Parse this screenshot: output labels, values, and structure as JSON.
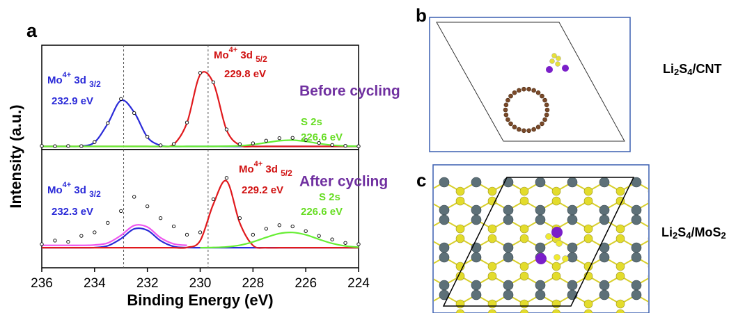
{
  "chart_data": [
    {
      "type": "line",
      "panel_label": "a",
      "ylabel": "Intensity (a.u.)",
      "title": "Before cycling",
      "title_color": "#7030a0",
      "x": [
        236,
        235.5,
        235,
        234.5,
        234,
        233.5,
        233,
        232.5,
        232,
        231.5,
        231,
        230.5,
        230,
        229.5,
        229,
        228.5,
        228,
        227.5,
        227,
        226.5,
        226,
        225.5,
        225,
        224.5,
        224
      ],
      "xlim": [
        236,
        224
      ],
      "ylim": [
        0,
        100
      ],
      "vlines": [
        232.9,
        229.7
      ],
      "points": {
        "color": "#000000",
        "values": [
          3.5,
          3.2,
          3.4,
          3.3,
          7.2,
          25.3,
          48.5,
          35.0,
          12.3,
          4.1,
          5.3,
          25.9,
          73.5,
          64.5,
          19.3,
          5.2,
          6.0,
          8.5,
          10.9,
          11.2,
          9.1,
          6.3,
          4.4,
          3.6,
          3.2
        ]
      },
      "series": [
        {
          "color": "#2a2ad8",
          "values": [
            3,
            3,
            3,
            3.3,
            7,
            24.9,
            47.1,
            35.7,
            11.9,
            3.9,
            3,
            3,
            3,
            3,
            3,
            3,
            3,
            3,
            3,
            3,
            3,
            3,
            3,
            3,
            3
          ]
        },
        {
          "color": "#e0191d",
          "values": [
            3,
            3,
            3,
            3,
            3,
            3,
            3,
            3,
            3,
            3,
            5.1,
            25.6,
            71.8,
            63.8,
            18.7,
            4.2,
            3,
            3,
            3,
            3,
            3,
            3,
            3,
            3,
            3
          ]
        },
        {
          "color": "#66ee33",
          "values": [
            3,
            3,
            3,
            3,
            3,
            3,
            3,
            3,
            3,
            3,
            3,
            3,
            3,
            3,
            3.2,
            3.6,
            4.8,
            6.6,
            8.4,
            9.0,
            7.8,
            5.8,
            4.2,
            3.4,
            3.1
          ]
        }
      ],
      "annotations": [
        {
          "parts": [
            "Mo",
            "4+",
            " 3d ",
            "3/2"
          ],
          "color": "#2a2ad8"
        },
        {
          "text": "232.9 eV",
          "color": "#2a2ad8"
        },
        {
          "parts": [
            "Mo",
            "4+",
            " 3d ",
            "5/2"
          ],
          "color": "#d01010"
        },
        {
          "text": "229.8 eV",
          "color": "#d01010"
        },
        {
          "text": "S 2s",
          "color": "#66dd22"
        },
        {
          "text": "226.6 eV",
          "color": "#66dd22"
        }
      ]
    },
    {
      "type": "line",
      "xlabel": "Binding Energy (eV)",
      "title": "After cycling",
      "title_color": "#7030a0",
      "x": [
        236,
        235.5,
        235,
        234.5,
        234,
        233.5,
        233,
        232.5,
        232,
        231.5,
        231,
        230.5,
        230,
        229.5,
        229,
        228.5,
        228,
        227.5,
        227,
        226.5,
        226,
        225.5,
        225,
        224.5,
        224
      ],
      "xlim": [
        236,
        224
      ],
      "ylim": [
        0,
        100
      ],
      "xticks": [
        236,
        234,
        232,
        230,
        228,
        226,
        224
      ],
      "vlines": [
        232.9,
        229.7
      ],
      "points": {
        "color": "#000000",
        "values": [
          20,
          23,
          22,
          27,
          30,
          38,
          48,
          60,
          52,
          42,
          35,
          28,
          30,
          58,
          76,
          42,
          28,
          33,
          36,
          35,
          31,
          27,
          24,
          21,
          20
        ]
      },
      "series": [
        {
          "color": "#ee55ee",
          "values": [
            19,
            19,
            19,
            19,
            19.3,
            21.0,
            27.4,
            35.8,
            34.5,
            25.4,
            20.2,
            19.0,
            null,
            null,
            null,
            null,
            null,
            null,
            null,
            null,
            null,
            null,
            null,
            null,
            null
          ]
        },
        {
          "color": "#2a2ad8",
          "values": [
            17,
            17,
            17,
            17,
            17.1,
            18.6,
            24.6,
            32.9,
            31.7,
            22.9,
            18.0,
            17.1,
            17,
            17,
            17,
            17,
            17,
            17,
            17,
            17,
            17,
            17,
            17,
            17,
            17
          ]
        },
        {
          "color": "#e0191d",
          "values": [
            17,
            17,
            17,
            17,
            17,
            17,
            17,
            17,
            17,
            17,
            17,
            17.2,
            22.9,
            53.9,
            73.4,
            37.9,
            18.9,
            17,
            17,
            17,
            17,
            17,
            17,
            17,
            17
          ]
        },
        {
          "color": "#66ee33",
          "values": [
            null,
            null,
            null,
            null,
            null,
            null,
            null,
            null,
            null,
            null,
            null,
            null,
            17.0,
            17.2,
            17.7,
            19.1,
            21.9,
            25.7,
            29.0,
            29.9,
            27.9,
            24.1,
            20.6,
            18.4,
            17.4
          ]
        }
      ],
      "annotations": [
        {
          "parts": [
            "Mo",
            "4+",
            " 3d ",
            "3/2"
          ],
          "color": "#2a2ad8"
        },
        {
          "text": "232.3 eV",
          "color": "#2a2ad8"
        },
        {
          "parts": [
            "Mo",
            "4+",
            " 3d ",
            "5/2"
          ],
          "color": "#d01010"
        },
        {
          "text": "229.2 eV",
          "color": "#d01010"
        },
        {
          "text": "S 2s",
          "color": "#66dd22"
        },
        {
          "text": "226.6 eV",
          "color": "#66dd22"
        }
      ]
    }
  ],
  "panels": [
    {
      "label": "b",
      "caption": [
        "Li",
        "2",
        "S",
        "4",
        "/CNT"
      ]
    },
    {
      "label": "c",
      "caption": [
        "Li",
        "2",
        "S",
        "4",
        "/MoS",
        "2"
      ]
    }
  ]
}
